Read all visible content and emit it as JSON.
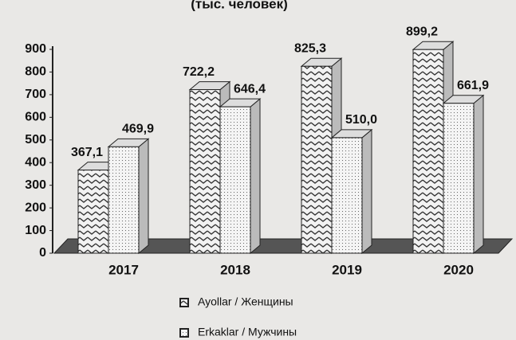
{
  "chart_data": {
    "type": "bar3d",
    "title": "(тыс. человек)",
    "categories": [
      "2017",
      "2018",
      "2019",
      "2020"
    ],
    "series": [
      {
        "name": "Ayollar / Женщины",
        "color": "#555555",
        "values": [
          367.1,
          722.2,
          825.3,
          899.2
        ],
        "value_labels": [
          "367,1",
          "722,2",
          "825,3",
          "899,2"
        ]
      },
      {
        "name": "Erkaklar / Мужчины",
        "color": "#999999",
        "values": [
          469.9,
          646.4,
          510.0,
          661.9
        ],
        "value_labels": [
          "469,9",
          "646,4",
          "510,0",
          "661,9"
        ]
      }
    ],
    "ylim": [
      0,
      900
    ],
    "yticks": [
      0,
      100,
      200,
      300,
      400,
      500,
      600,
      700,
      800,
      900
    ]
  }
}
